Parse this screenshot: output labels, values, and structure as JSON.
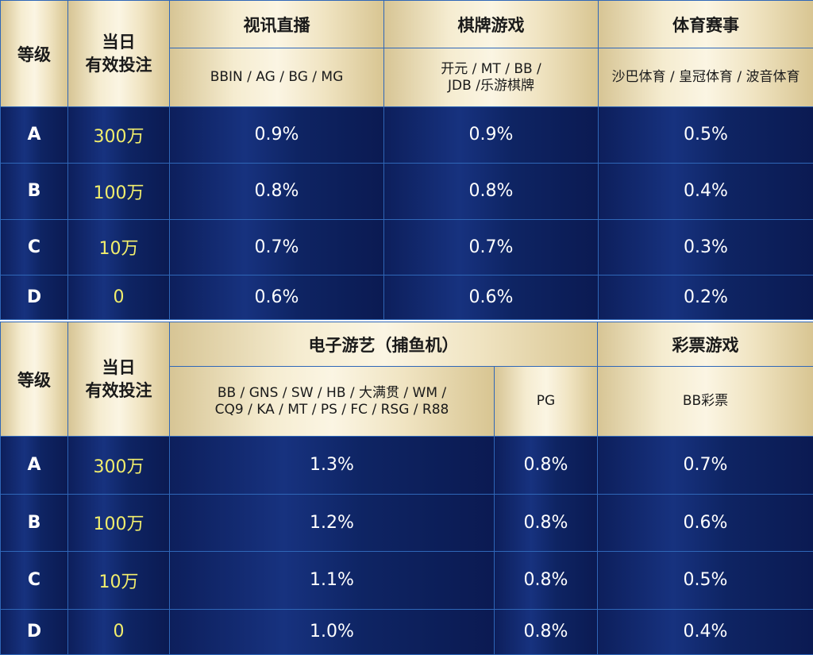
{
  "table1": {
    "header": {
      "level": "等级",
      "amount_line1": "当日",
      "amount_line2": "有效投注",
      "cat_live": "视讯直播",
      "cat_board": "棋牌游戏",
      "cat_sports": "体育赛事",
      "prov_live": "BBIN / AG / BG / MG",
      "prov_board_line1": "开元 / MT / BB /",
      "prov_board_line2": "JDB /乐游棋牌",
      "prov_sports": "沙巴体育 / 皇冠体育 / 波音体育"
    },
    "rows": [
      {
        "level": "A",
        "amount": "300万",
        "live": "0.9%",
        "board": "0.9%",
        "sports": "0.5%"
      },
      {
        "level": "B",
        "amount": "100万",
        "live": "0.8%",
        "board": "0.8%",
        "sports": "0.4%"
      },
      {
        "level": "C",
        "amount": "10万",
        "live": "0.7%",
        "board": "0.7%",
        "sports": "0.3%"
      },
      {
        "level": "D",
        "amount": "0",
        "live": "0.6%",
        "board": "0.6%",
        "sports": "0.2%"
      }
    ]
  },
  "table2": {
    "header": {
      "level": "等级",
      "amount_line1": "当日",
      "amount_line2": "有效投注",
      "cat_electronic": "电子游艺（捕鱼机）",
      "cat_lottery": "彩票游戏",
      "prov_electronic_line1": "BB / GNS / SW / HB / 大满贯 / WM /",
      "prov_electronic_line2": "CQ9 / KA / MT / PS / FC / RSG / R88",
      "prov_pg": "PG",
      "prov_lottery": "BB彩票"
    },
    "rows": [
      {
        "level": "A",
        "amount": "300万",
        "electronic": "1.3%",
        "pg": "0.8%",
        "lottery": "0.7%"
      },
      {
        "level": "B",
        "amount": "100万",
        "electronic": "1.2%",
        "pg": "0.8%",
        "lottery": "0.6%"
      },
      {
        "level": "C",
        "amount": "10万",
        "electronic": "1.1%",
        "pg": "0.8%",
        "lottery": "0.5%"
      },
      {
        "level": "D",
        "amount": "0",
        "electronic": "1.0%",
        "pg": "0.8%",
        "lottery": "0.4%"
      }
    ]
  }
}
